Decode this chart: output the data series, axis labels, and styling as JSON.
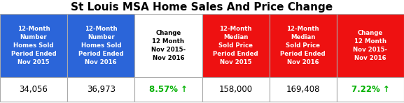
{
  "title": "St Louis MSA Home Sales And Price Change",
  "title_fontsize": 11,
  "columns": [
    {
      "header": "12-Month\nNumber\nHomes Sold\nPeriod Ended\nNov 2015",
      "value": "34,056",
      "header_bg": "#2b65d9",
      "header_fg": "#ffffff",
      "value_fg": "#000000",
      "value_bold": false
    },
    {
      "header": "12-Month\nNumber\nHomes Sold\nPeriod Ended\nNov 2016",
      "value": "36,973",
      "header_bg": "#2b65d9",
      "header_fg": "#ffffff",
      "value_fg": "#000000",
      "value_bold": false
    },
    {
      "header": "Change\n12 Month\nNov 2015-\nNov 2016",
      "value": "8.57% ↑",
      "header_bg": "#ffffff",
      "header_fg": "#000000",
      "value_fg": "#00b000",
      "value_bold": true
    },
    {
      "header": "12-Month\nMedian\nSold Price\nPeriod Ended\nNov 2015",
      "value": "158,000",
      "header_bg": "#ee1111",
      "header_fg": "#ffffff",
      "value_fg": "#000000",
      "value_bold": false
    },
    {
      "header": "12-Month\nMedian\nSold Price\nPeriod Ended\nNov 2016",
      "value": "169,408",
      "header_bg": "#ee1111",
      "header_fg": "#ffffff",
      "value_fg": "#000000",
      "value_bold": false
    },
    {
      "header": "Change\n12 Month\nNov 2015-\nNov 2016",
      "value": "7.22% ↑",
      "header_bg": "#ee1111",
      "header_fg": "#ffffff",
      "value_fg": "#00b000",
      "value_bold": true
    }
  ],
  "border_color": "#aaaaaa",
  "background_color": "#ffffff",
  "fig_width": 5.77,
  "fig_height": 1.48,
  "dpi": 100
}
